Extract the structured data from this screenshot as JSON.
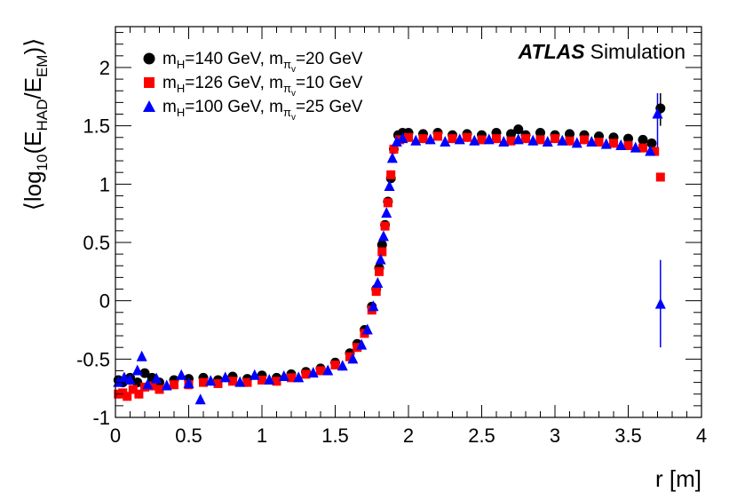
{
  "chart_data": {
    "type": "scatter",
    "title": "",
    "xlabel": "r [m]",
    "ylabel_parts": [
      "⟨log",
      "10",
      "(E",
      "HAD",
      "/E",
      "EM",
      ")⟩"
    ],
    "xlim": [
      0,
      4
    ],
    "ylim": [
      -1,
      2.35
    ],
    "x_ticks": [
      0,
      0.5,
      1,
      1.5,
      2,
      2.5,
      3,
      3.5,
      4
    ],
    "x_tick_labels": [
      "0",
      "0.5",
      "1",
      "1.5",
      "2",
      "2.5",
      "3",
      "3.5",
      "4"
    ],
    "y_ticks": [
      -1,
      -0.5,
      0,
      0.5,
      1,
      1.5,
      2
    ],
    "y_tick_labels": [
      "-1",
      "-0.5",
      "0",
      "0.5",
      "1",
      "1.5",
      "2"
    ],
    "annotation": {
      "bold": "ATLAS",
      "regular": "Simulation"
    },
    "legend_position": "top-left",
    "series": [
      {
        "name": "mH=140 GeV, mπv=20 GeV",
        "legend": [
          "m",
          "H",
          "=140 GeV, m",
          "π",
          "v",
          "=20 GeV"
        ],
        "marker": "circle",
        "color": "#000000",
        "points": [
          [
            0.02,
            -0.68
          ],
          [
            0.05,
            -0.7
          ],
          [
            0.1,
            -0.66
          ],
          [
            0.15,
            -0.7
          ],
          [
            0.2,
            -0.62
          ],
          [
            0.25,
            -0.66
          ],
          [
            0.3,
            -0.7
          ],
          [
            0.4,
            -0.68
          ],
          [
            0.5,
            -0.67
          ],
          [
            0.6,
            -0.66
          ],
          [
            0.7,
            -0.68
          ],
          [
            0.8,
            -0.65
          ],
          [
            0.9,
            -0.67
          ],
          [
            1.0,
            -0.64
          ],
          [
            1.1,
            -0.66
          ],
          [
            1.2,
            -0.63
          ],
          [
            1.3,
            -0.61
          ],
          [
            1.4,
            -0.58
          ],
          [
            1.5,
            -0.53
          ],
          [
            1.6,
            -0.45
          ],
          [
            1.65,
            -0.37
          ],
          [
            1.7,
            -0.25
          ],
          [
            1.75,
            -0.05
          ],
          [
            1.78,
            0.1
          ],
          [
            1.8,
            0.28
          ],
          [
            1.82,
            0.48
          ],
          [
            1.84,
            0.65
          ],
          [
            1.86,
            0.85
          ],
          [
            1.88,
            1.05
          ],
          [
            1.9,
            1.3
          ],
          [
            1.93,
            1.42
          ],
          [
            1.96,
            1.44
          ],
          [
            2.0,
            1.44
          ],
          [
            2.1,
            1.43
          ],
          [
            2.2,
            1.44
          ],
          [
            2.3,
            1.42
          ],
          [
            2.4,
            1.43
          ],
          [
            2.5,
            1.42
          ],
          [
            2.6,
            1.44
          ],
          [
            2.7,
            1.43
          ],
          [
            2.75,
            1.47
          ],
          [
            2.8,
            1.42
          ],
          [
            2.9,
            1.44
          ],
          [
            3.0,
            1.42
          ],
          [
            3.1,
            1.43
          ],
          [
            3.2,
            1.42
          ],
          [
            3.3,
            1.41
          ],
          [
            3.4,
            1.4
          ],
          [
            3.5,
            1.39
          ],
          [
            3.6,
            1.38
          ],
          [
            3.66,
            1.35
          ],
          [
            3.72,
            1.65
          ]
        ]
      },
      {
        "name": "mH=126 GeV, mπv=10 GeV",
        "legend": [
          "m",
          "H",
          "=126 GeV, m",
          "π",
          "v",
          "=10 GeV"
        ],
        "marker": "square",
        "color": "#ff0000",
        "points": [
          [
            0.02,
            -0.8
          ],
          [
            0.05,
            -0.79
          ],
          [
            0.08,
            -0.82
          ],
          [
            0.12,
            -0.76
          ],
          [
            0.16,
            -0.8
          ],
          [
            0.2,
            -0.74
          ],
          [
            0.25,
            -0.73
          ],
          [
            0.3,
            -0.76
          ],
          [
            0.4,
            -0.72
          ],
          [
            0.5,
            -0.72
          ],
          [
            0.6,
            -0.7
          ],
          [
            0.7,
            -0.71
          ],
          [
            0.8,
            -0.69
          ],
          [
            0.9,
            -0.7
          ],
          [
            1.0,
            -0.68
          ],
          [
            1.1,
            -0.69
          ],
          [
            1.2,
            -0.66
          ],
          [
            1.3,
            -0.63
          ],
          [
            1.4,
            -0.6
          ],
          [
            1.5,
            -0.55
          ],
          [
            1.6,
            -0.48
          ],
          [
            1.65,
            -0.4
          ],
          [
            1.7,
            -0.28
          ],
          [
            1.75,
            -0.08
          ],
          [
            1.78,
            0.08
          ],
          [
            1.8,
            0.25
          ],
          [
            1.82,
            0.42
          ],
          [
            1.84,
            0.64
          ],
          [
            1.86,
            0.84
          ],
          [
            1.88,
            1.08
          ],
          [
            1.9,
            1.3
          ],
          [
            1.94,
            1.38
          ],
          [
            2.0,
            1.4
          ],
          [
            2.1,
            1.39
          ],
          [
            2.2,
            1.41
          ],
          [
            2.3,
            1.39
          ],
          [
            2.4,
            1.4
          ],
          [
            2.5,
            1.38
          ],
          [
            2.6,
            1.39
          ],
          [
            2.7,
            1.37
          ],
          [
            2.8,
            1.39
          ],
          [
            2.9,
            1.38
          ],
          [
            3.0,
            1.39
          ],
          [
            3.1,
            1.37
          ],
          [
            3.2,
            1.38
          ],
          [
            3.3,
            1.36
          ],
          [
            3.4,
            1.35
          ],
          [
            3.5,
            1.33
          ],
          [
            3.6,
            1.31
          ],
          [
            3.68,
            1.28
          ],
          [
            3.72,
            1.06
          ]
        ]
      },
      {
        "name": "mH=100 GeV, mπv=25 GeV",
        "legend": [
          "m",
          "H",
          "=100 GeV, m",
          "π",
          "v",
          "=25 GeV"
        ],
        "marker": "triangle",
        "color": "#0000ff",
        "points": [
          [
            0.02,
            -0.7
          ],
          [
            0.06,
            -0.66
          ],
          [
            0.1,
            -0.68
          ],
          [
            0.15,
            -0.6
          ],
          [
            0.18,
            -0.48
          ],
          [
            0.22,
            -0.72
          ],
          [
            0.28,
            -0.67
          ],
          [
            0.35,
            -0.73
          ],
          [
            0.45,
            -0.64
          ],
          [
            0.5,
            -0.71
          ],
          [
            0.58,
            -0.85
          ],
          [
            0.65,
            -0.69
          ],
          [
            0.75,
            -0.66
          ],
          [
            0.85,
            -0.7
          ],
          [
            0.95,
            -0.64
          ],
          [
            1.05,
            -0.68
          ],
          [
            1.15,
            -0.65
          ],
          [
            1.25,
            -0.66
          ],
          [
            1.35,
            -0.62
          ],
          [
            1.45,
            -0.6
          ],
          [
            1.55,
            -0.56
          ],
          [
            1.62,
            -0.5
          ],
          [
            1.68,
            -0.38
          ],
          [
            1.72,
            -0.25
          ],
          [
            1.76,
            -0.05
          ],
          [
            1.79,
            0.15
          ],
          [
            1.81,
            0.35
          ],
          [
            1.83,
            0.55
          ],
          [
            1.85,
            0.75
          ],
          [
            1.87,
            0.98
          ],
          [
            1.89,
            1.22
          ],
          [
            1.92,
            1.36
          ],
          [
            1.96,
            1.39
          ],
          [
            2.05,
            1.37
          ],
          [
            2.15,
            1.38
          ],
          [
            2.25,
            1.36
          ],
          [
            2.35,
            1.38
          ],
          [
            2.45,
            1.37
          ],
          [
            2.55,
            1.38
          ],
          [
            2.65,
            1.36
          ],
          [
            2.75,
            1.38
          ],
          [
            2.85,
            1.37
          ],
          [
            2.95,
            1.36
          ],
          [
            3.05,
            1.37
          ],
          [
            3.15,
            1.35
          ],
          [
            3.25,
            1.36
          ],
          [
            3.35,
            1.34
          ],
          [
            3.45,
            1.33
          ],
          [
            3.55,
            1.31
          ],
          [
            3.65,
            1.28
          ],
          [
            3.7,
            1.6
          ],
          [
            3.72,
            -0.03
          ]
        ]
      }
    ]
  }
}
